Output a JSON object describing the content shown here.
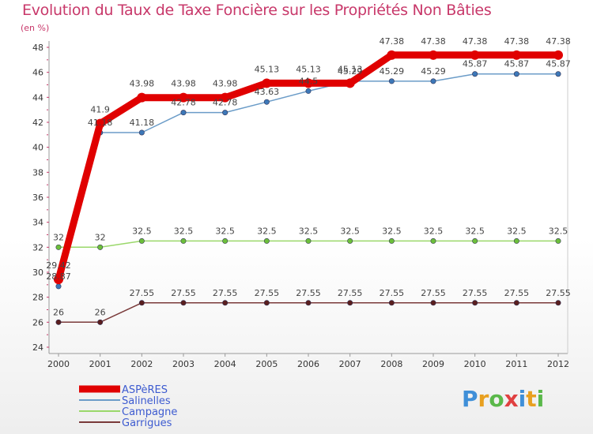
{
  "chart_data": {
    "type": "line",
    "title": "Evolution du Taux de Taxe Foncière sur les Propriétés Non Bâties",
    "unit_label": "(en %)",
    "x": [
      "2000",
      "2001",
      "2002",
      "2003",
      "2004",
      "2005",
      "2006",
      "2007",
      "2008",
      "2009",
      "2010",
      "2011",
      "2012"
    ],
    "ylim": [
      24,
      48
    ],
    "yticks": [
      24,
      26,
      28,
      30,
      32,
      34,
      36,
      38,
      40,
      42,
      44,
      46,
      48
    ],
    "grid": false,
    "legend_position": "bottom-left",
    "series": [
      {
        "name": "Salinelles",
        "color": "#6b9cc8",
        "marker": "#3d78b8",
        "width": 1.5,
        "values": [
          28.87,
          41.18,
          41.18,
          42.78,
          42.78,
          43.63,
          44.5,
          45.29,
          45.29,
          45.29,
          45.87,
          45.87,
          45.87
        ],
        "labels": [
          "28.87",
          "41.18",
          "41.18",
          "42.78",
          "42.78",
          "43.63",
          "44.5",
          "45.29",
          "45.29",
          "45.29",
          "45.87",
          "45.87",
          "45.87"
        ]
      },
      {
        "name": "Campagne",
        "color": "#9ad86a",
        "marker": "#6cbf3a",
        "width": 1.5,
        "values": [
          32,
          32,
          32.5,
          32.5,
          32.5,
          32.5,
          32.5,
          32.5,
          32.5,
          32.5,
          32.5,
          32.5,
          32.5
        ],
        "labels": [
          "32",
          "32",
          "32.5",
          "32.5",
          "32.5",
          "32.5",
          "32.5",
          "32.5",
          "32.5",
          "32.5",
          "32.5",
          "32.5",
          "32.5"
        ]
      },
      {
        "name": "Garrigues",
        "color": "#7a3a3a",
        "marker": "#5a1e1e",
        "width": 1.5,
        "values": [
          26,
          26,
          27.55,
          27.55,
          27.55,
          27.55,
          27.55,
          27.55,
          27.55,
          27.55,
          27.55,
          27.55,
          27.55
        ],
        "labels": [
          "26",
          "26",
          "27.55",
          "27.55",
          "27.55",
          "27.55",
          "27.55",
          "27.55",
          "27.55",
          "27.55",
          "27.55",
          "27.55",
          "27.55"
        ]
      },
      {
        "name": "ASPèRES",
        "color": "#e00000",
        "marker": "#e00000",
        "width": 9,
        "values": [
          29.42,
          41.9,
          43.98,
          43.98,
          43.98,
          45.13,
          45.13,
          45.13,
          47.38,
          47.38,
          47.38,
          47.38,
          47.38
        ],
        "labels": [
          "29.42",
          "41.9",
          "43.98",
          "43.98",
          "43.98",
          "45.13",
          "45.13",
          "45.13",
          "47.38",
          "47.38",
          "47.38",
          "47.38",
          "47.38"
        ]
      }
    ],
    "legend": [
      "ASPèRES",
      "Salinelles",
      "Campagne",
      "Garrigues"
    ]
  },
  "logo": {
    "text": "Proxiti"
  }
}
